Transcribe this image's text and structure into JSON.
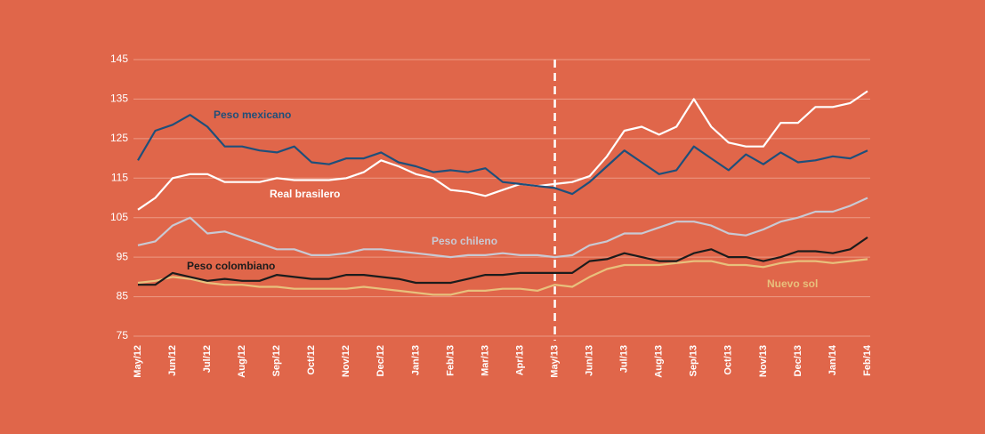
{
  "chart_data": {
    "type": "line",
    "categories": [
      "May/12",
      null,
      "Jun/12",
      null,
      "Jul/12",
      null,
      "Aug/12",
      null,
      "Sep/12",
      null,
      "Oct/12",
      null,
      "Nov/12",
      null,
      "Dec/12",
      null,
      "Jan/13",
      null,
      "Feb/13",
      null,
      "Mar/13",
      null,
      "Apr/13",
      null,
      "May/13",
      null,
      "Jun/13",
      null,
      "Jul/13",
      null,
      "Aug/13",
      null,
      "Sep/13",
      null,
      "Oct/13",
      null,
      "Nov/13",
      null,
      "Dec/13",
      null,
      "Jan/14",
      null,
      "Feb/14"
    ],
    "series": [
      {
        "name": "Nuevo sol",
        "color": "#e8c07c",
        "values": [
          88.5,
          89,
          90,
          89.5,
          88.5,
          88,
          88,
          87.5,
          87.5,
          87,
          87,
          87,
          87,
          87.5,
          87,
          86.5,
          86,
          85.5,
          85.5,
          86.5,
          86.5,
          87,
          87,
          86.5,
          88,
          87.5,
          90,
          92,
          93,
          93,
          93,
          93.5,
          94,
          94,
          93,
          93,
          92.5,
          93.5,
          94,
          94,
          93.5,
          94,
          94.5
        ]
      },
      {
        "name": "Peso colombiano",
        "color": "#1c1c1c",
        "values": [
          88,
          88,
          91,
          90,
          89,
          89.5,
          89,
          89,
          90.5,
          90,
          89.5,
          89.5,
          90.5,
          90.5,
          90,
          89.5,
          88.5,
          88.5,
          88.5,
          89.5,
          90.5,
          90.5,
          91,
          91,
          91,
          91,
          94,
          94.5,
          96,
          95,
          94,
          94,
          96,
          97,
          95,
          95,
          94,
          95,
          96.5,
          96.5,
          96,
          97,
          100
        ]
      },
      {
        "name": "Peso chileno",
        "color": "#c9c9d3",
        "values": [
          98,
          99,
          103,
          105,
          101,
          101.5,
          100,
          98.5,
          97,
          97,
          95.5,
          95.5,
          96,
          97,
          97,
          96.5,
          96,
          95.5,
          95,
          95.5,
          95.5,
          96,
          95.5,
          95.5,
          95,
          95.5,
          98,
          99,
          101,
          101,
          102.5,
          104,
          104,
          103,
          101,
          100.5,
          102,
          104,
          105,
          106.5,
          106.5,
          108,
          110
        ]
      },
      {
        "name": "Real brasilero",
        "color": "#ffffff",
        "values": [
          107,
          110,
          115,
          116,
          116,
          114,
          114,
          114,
          115,
          114.5,
          114.5,
          114.5,
          115,
          116.5,
          119.5,
          118,
          116,
          115,
          112,
          111.5,
          110.5,
          112,
          113.5,
          113,
          113.5,
          114,
          115.5,
          120.5,
          127,
          128,
          126,
          128,
          135,
          128,
          124,
          123,
          123,
          129,
          129,
          133,
          133,
          134,
          137
        ]
      },
      {
        "name": "Peso mexicano",
        "color": "#1f4f7a",
        "values": [
          119.5,
          127,
          128.5,
          131,
          128,
          123,
          123,
          122,
          121.5,
          123,
          119,
          118.5,
          120,
          120,
          121.5,
          119,
          118,
          116.5,
          117,
          116.5,
          117.5,
          114,
          113.5,
          113,
          112.5,
          111,
          114,
          118,
          122,
          119,
          116,
          117,
          123,
          120,
          117,
          121,
          118.5,
          121.5,
          119,
          119.5,
          120.5,
          120,
          122
        ]
      }
    ],
    "ylim": [
      75,
      145
    ],
    "yticks": [
      75,
      85,
      95,
      105,
      115,
      125,
      135,
      145
    ],
    "grid": true,
    "vertical_line_index": 24
  }
}
